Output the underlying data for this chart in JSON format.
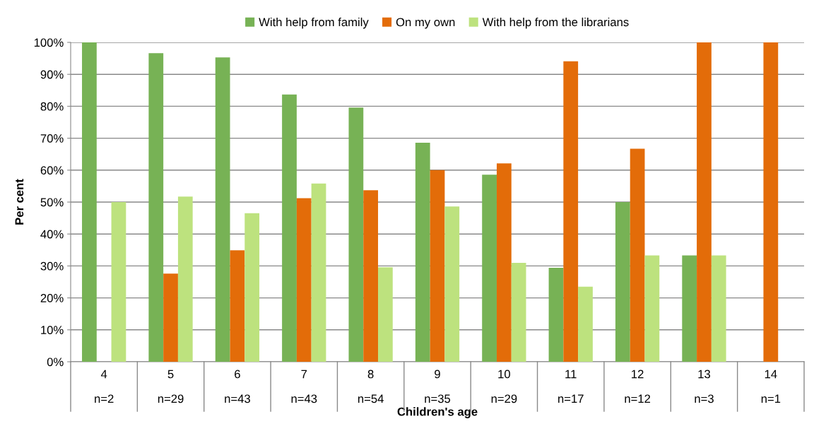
{
  "chart_data": {
    "type": "bar",
    "xlabel": "Children's age",
    "ylabel": "Per cent",
    "categories": [
      "4\nn=2",
      "5\nn=29",
      "6\nn=43",
      "7\nn=43",
      "8\nn=54",
      "9\nn=35",
      "10\nn=29",
      "11\nn=17",
      "12\nn=12",
      "13\nn=3",
      "14\nn=1"
    ],
    "series": [
      {
        "name": "With help from family",
        "color": "#77b255",
        "values": [
          100,
          96.6,
          95.3,
          83.7,
          79.6,
          68.6,
          58.6,
          29.4,
          50,
          33.3,
          0
        ]
      },
      {
        "name": "On my own",
        "color": "#e36c09",
        "values": [
          0,
          27.6,
          34.9,
          51.2,
          53.7,
          60,
          62.1,
          94.1,
          66.7,
          100,
          100
        ]
      },
      {
        "name": "With help from the librarians",
        "color": "#bde27e",
        "values": [
          50,
          51.7,
          46.5,
          55.8,
          29.6,
          48.6,
          31.0,
          23.5,
          33.3,
          33.3,
          0
        ]
      }
    ],
    "ylim": [
      0,
      100
    ],
    "yticks": [
      {
        "value": 0,
        "label": "0%"
      },
      {
        "value": 10,
        "label": "10%"
      },
      {
        "value": 20,
        "label": "20%"
      },
      {
        "value": 30,
        "label": "30%"
      },
      {
        "value": 40,
        "label": "40%"
      },
      {
        "value": 50,
        "label": "50%"
      },
      {
        "value": 60,
        "label": "60%"
      },
      {
        "value": 70,
        "label": "70%"
      },
      {
        "value": 80,
        "label": "80%"
      },
      {
        "value": 90,
        "label": "90%"
      },
      {
        "value": 100,
        "label": "100%"
      }
    ],
    "grid": "y",
    "legend": "top"
  }
}
